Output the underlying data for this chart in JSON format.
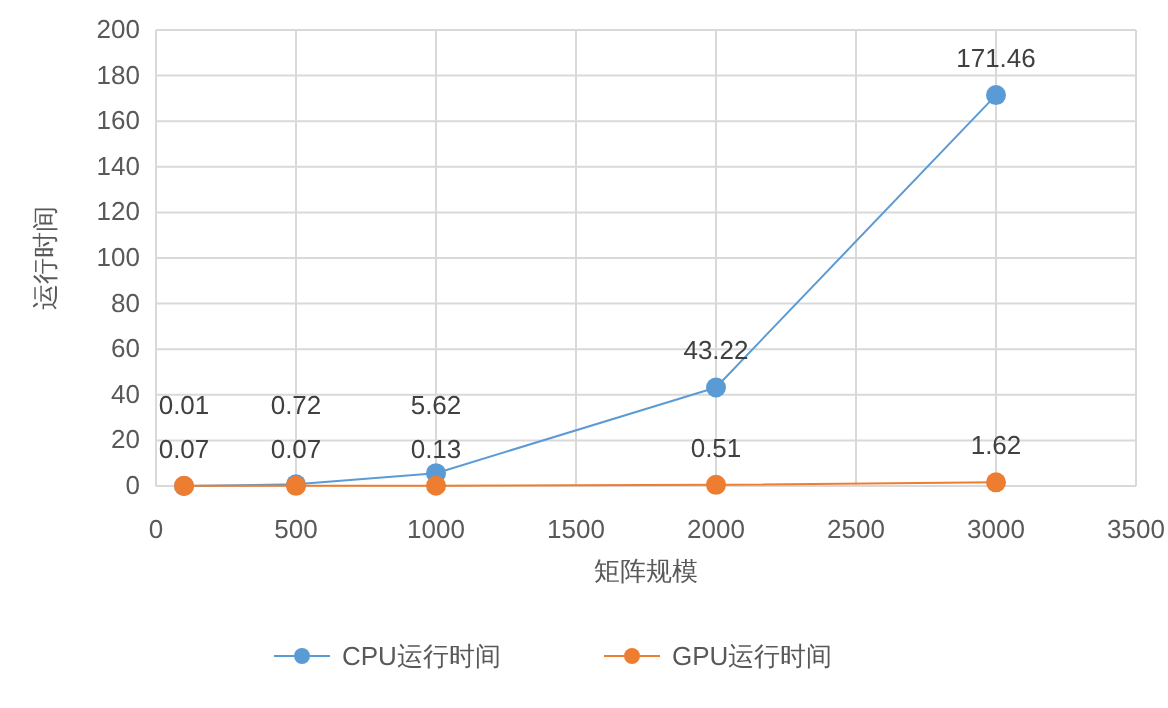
{
  "chart_data": {
    "type": "line",
    "xlabel": "矩阵规模",
    "ylabel": "运行时间",
    "x": [
      100,
      500,
      1000,
      2000,
      3000
    ],
    "series": [
      {
        "name": "CPU运行时间",
        "color": "#5b9bd5",
        "values": [
          0.01,
          0.72,
          5.62,
          43.22,
          171.46
        ]
      },
      {
        "name": "GPU运行时间",
        "color": "#ed7d31",
        "values": [
          0.07,
          0.07,
          0.13,
          0.51,
          1.62
        ]
      }
    ],
    "xlim": [
      0,
      3500
    ],
    "xticks": [
      0,
      500,
      1000,
      1500,
      2000,
      2500,
      3000,
      3500
    ],
    "ylim": [
      0,
      200
    ],
    "yticks": [
      0,
      20,
      40,
      60,
      80,
      100,
      120,
      140,
      160,
      180,
      200
    ],
    "grid": true,
    "legend": "bottom",
    "marker": "circle",
    "line_style": "solid",
    "data_labels": true
  }
}
